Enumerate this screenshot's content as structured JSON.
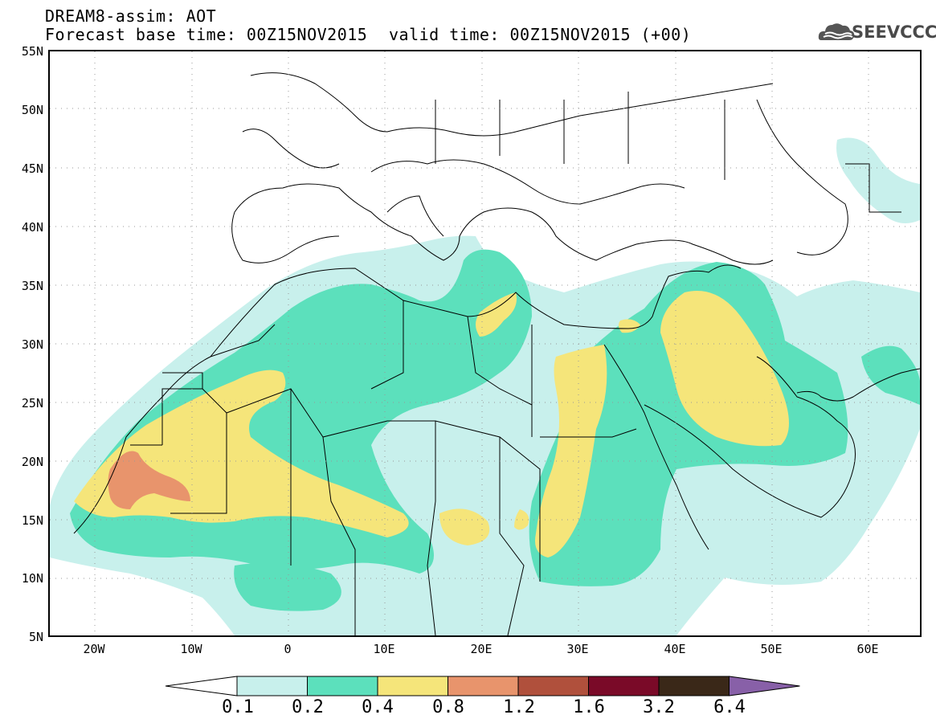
{
  "header": {
    "line1": "DREAM8-assim: AOT",
    "line2": "Forecast base time: 00Z15NOV2015",
    "valid": "valid time: 00Z15NOV2015 (+00)",
    "logo": "SEEVCCC"
  },
  "axes": {
    "lat_labels": [
      "55N",
      "50N",
      "45N",
      "40N",
      "35N",
      "30N",
      "25N",
      "20N",
      "15N",
      "10N",
      "5N"
    ],
    "lon_labels": [
      "20W",
      "10W",
      "0",
      "10E",
      "20E",
      "30E",
      "40E",
      "50E",
      "60E"
    ],
    "extent": {
      "lon": [
        -25,
        65
      ],
      "lat": [
        5,
        55
      ]
    }
  },
  "legend": {
    "labels": [
      "0.1",
      "0.2",
      "0.4",
      "0.8",
      "1.2",
      "1.6",
      "3.2",
      "6.4"
    ],
    "colors": [
      "#ffffff",
      "#c8f0ec",
      "#5ce0bc",
      "#f5e57a",
      "#e8946c",
      "#b0503c",
      "#7a0a28",
      "#3a2818",
      "#8860a8"
    ]
  }
}
